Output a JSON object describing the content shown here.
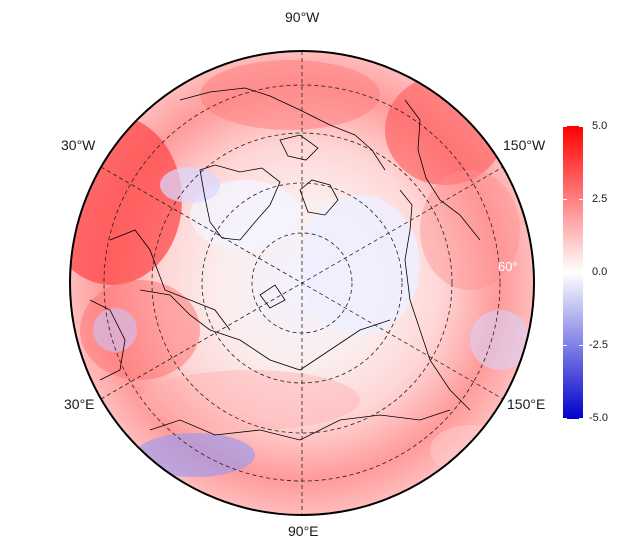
{
  "map": {
    "projection": "north-polar-stereographic",
    "longitude_labels": {
      "top": "90°W",
      "upper_left": "30°W",
      "upper_right": "150°W",
      "lower_left": "30°E",
      "lower_right": "150°E",
      "bottom": "90°E"
    },
    "latitude_label": "60°"
  },
  "colorbar": {
    "ticks": [
      "5.0",
      "2.5",
      "0.0",
      "-2.5",
      "-5.0"
    ],
    "colors": {
      "high": "#ff0000",
      "mid": "#ffffff",
      "low": "#0000cc"
    },
    "range": [
      -5.0,
      5.0
    ]
  }
}
